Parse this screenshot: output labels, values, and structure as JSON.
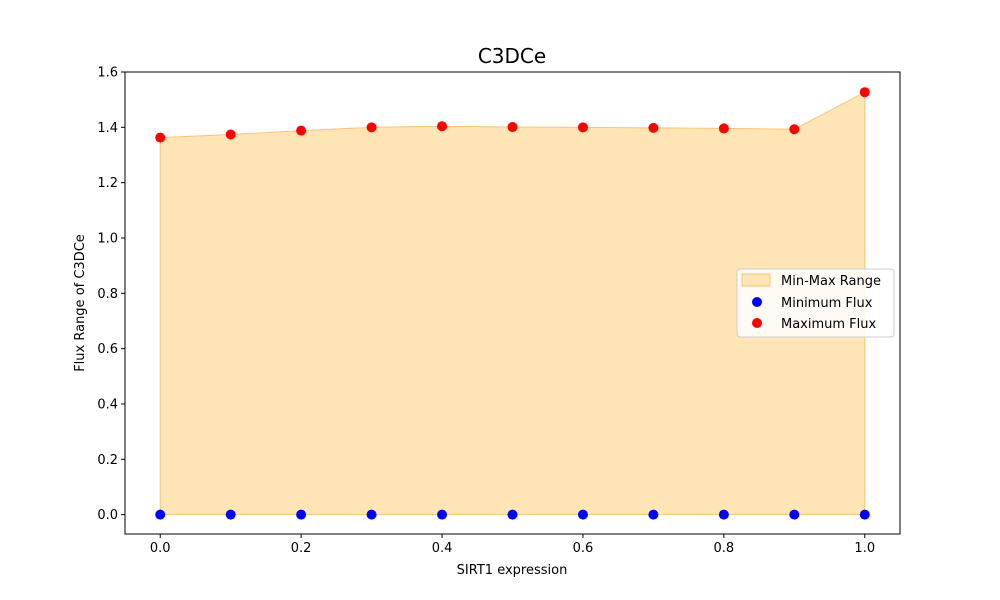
{
  "chart_data": {
    "type": "scatter",
    "title": "C3DCe",
    "xlabel": "SIRT1 expression",
    "ylabel": "Flux Range of C3DCe",
    "xlim": [
      -0.05,
      1.05
    ],
    "ylim": [
      -0.07,
      1.6
    ],
    "xticks": [
      0.0,
      0.2,
      0.4,
      0.6,
      0.8,
      1.0
    ],
    "yticks": [
      0.0,
      0.2,
      0.4,
      0.6,
      0.8,
      1.0,
      1.2,
      1.4,
      1.6
    ],
    "x": [
      0.0,
      0.1,
      0.2,
      0.3,
      0.4,
      0.5,
      0.6,
      0.7,
      0.8,
      0.9,
      1.0
    ],
    "series": [
      {
        "name": "Minimum Flux",
        "color": "#0000ff",
        "values": [
          0,
          0,
          0,
          0,
          0,
          0,
          0,
          0,
          0,
          0,
          0
        ]
      },
      {
        "name": "Maximum Flux",
        "color": "#ff0000",
        "values": [
          1.363,
          1.374,
          1.388,
          1.4,
          1.404,
          1.401,
          1.4,
          1.398,
          1.396,
          1.393,
          1.527
        ]
      }
    ],
    "fill": {
      "name": "Min-Max Range",
      "color": "#ffe4b5",
      "edge": "#f5c678"
    },
    "legend": {
      "position": "center-right",
      "entries": [
        "Min-Max Range",
        "Minimum Flux",
        "Maximum Flux"
      ]
    },
    "grid": false
  }
}
